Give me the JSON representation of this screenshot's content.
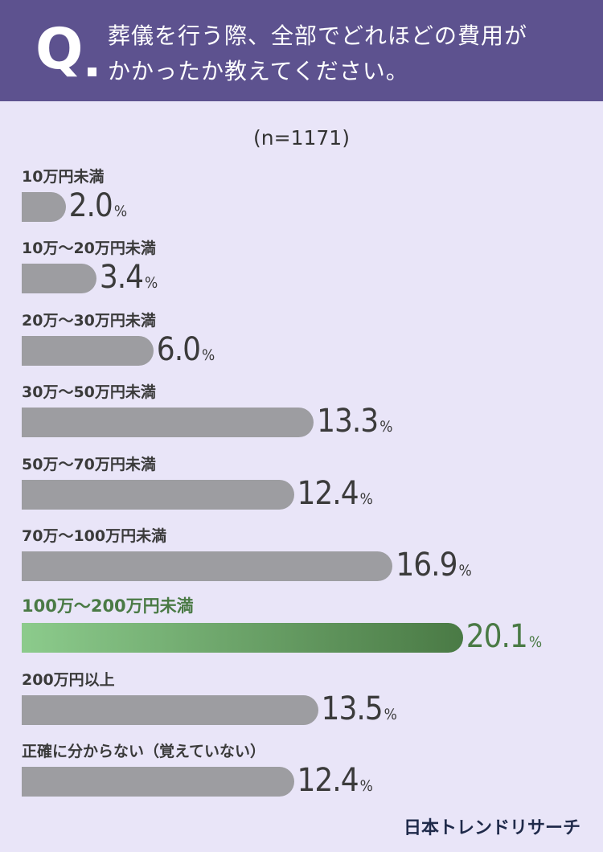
{
  "header": {
    "q_mark": "Q",
    "question_line1": "葬儀を行う際、全部でどれほどの費用が",
    "question_line2": "かかったか教えてください。"
  },
  "chart_data": {
    "type": "bar",
    "title": "葬儀を行う際、全部でどれほどの費用がかかったか教えてください。",
    "sample": "(n=1171)",
    "unit": "%",
    "categories": [
      "10万円未満",
      "10万〜20万円未満",
      "20万〜30万円未満",
      "30万〜50万円未満",
      "50万〜70万円未満",
      "70万〜100万円未満",
      "100万〜200万円未満",
      "200万円以上",
      "正確に分からない（覚えていない）"
    ],
    "values": [
      2.0,
      3.4,
      6.0,
      13.3,
      12.4,
      16.9,
      20.1,
      13.5,
      12.4
    ],
    "value_labels": [
      "2.0",
      "3.4",
      "6.0",
      "13.3",
      "12.4",
      "16.9",
      "20.1",
      "13.5",
      "12.4"
    ],
    "highlight_index": 6,
    "colors": {
      "bar": "#9d9da1",
      "highlight_start": "#8ccb8c",
      "highlight_end": "#4a7a45",
      "header": "#5d528f",
      "background": "#e9e5f8"
    }
  },
  "footer": {
    "source": "日本トレンドリサーチ"
  }
}
